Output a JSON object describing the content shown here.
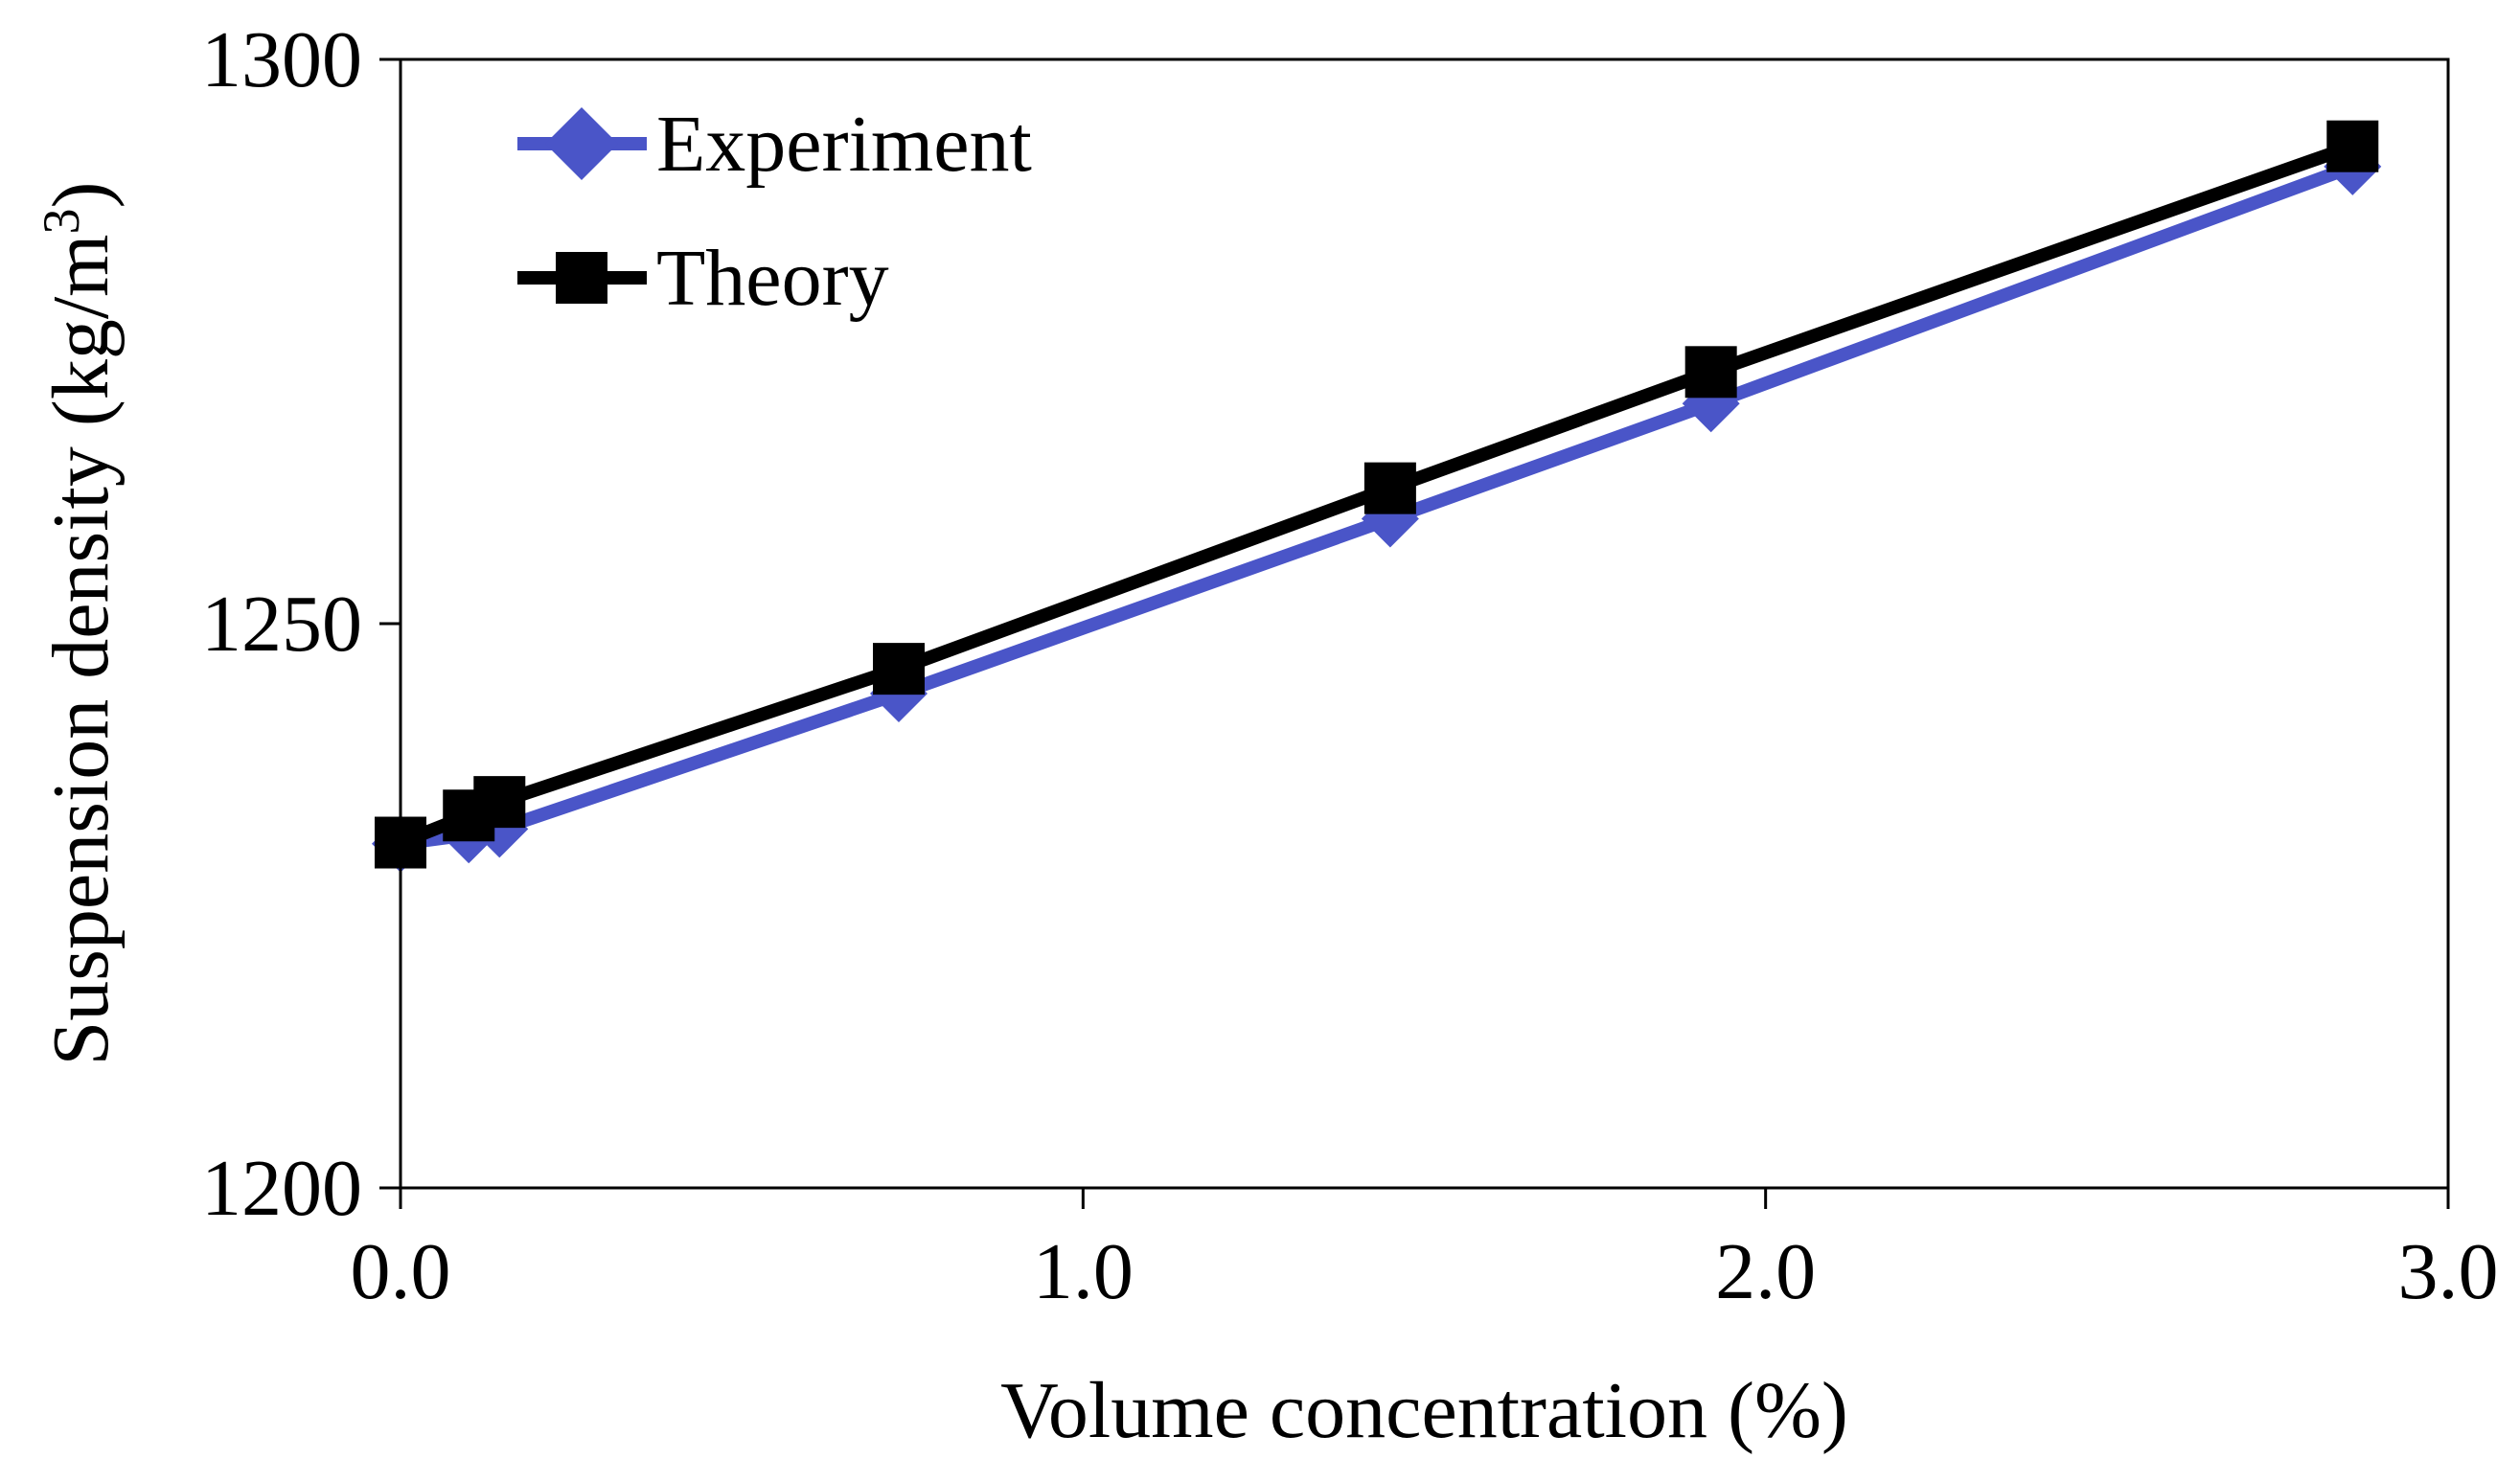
{
  "chart_data": {
    "type": "line",
    "title": "",
    "xlabel": "Volume concentration (%)",
    "ylabel": "Suspension density (kg/m",
    "ylabel_superscript": "3",
    "ylabel_close": ")",
    "xlim": [
      0,
      3
    ],
    "ylim": [
      1200,
      1300
    ],
    "xticks": [
      0,
      1,
      2,
      3
    ],
    "xtick_labels": [
      "0.0",
      "1.0",
      "2.0",
      "3.0"
    ],
    "yticks": [
      1200,
      1250,
      1300
    ],
    "ytick_labels": [
      "1200",
      "1250",
      "1300"
    ],
    "grid": false,
    "legend_position": "top-left",
    "series": [
      {
        "name": "Experiment",
        "color": "#4a55c8",
        "marker": "diamond",
        "x": [
          0,
          0.1,
          0.145,
          0.73,
          1.45,
          1.92,
          2.86
        ],
        "y": [
          1230.5,
          1231.3,
          1231.8,
          1243.8,
          1259.3,
          1269.5,
          1290.5
        ]
      },
      {
        "name": "Theory",
        "color": "#000000",
        "marker": "square",
        "x": [
          0,
          0.1,
          0.145,
          0.73,
          1.45,
          1.92,
          2.86
        ],
        "y": [
          1230.6,
          1233.0,
          1234.2,
          1246.0,
          1262.0,
          1272.3,
          1292.3
        ]
      }
    ]
  }
}
